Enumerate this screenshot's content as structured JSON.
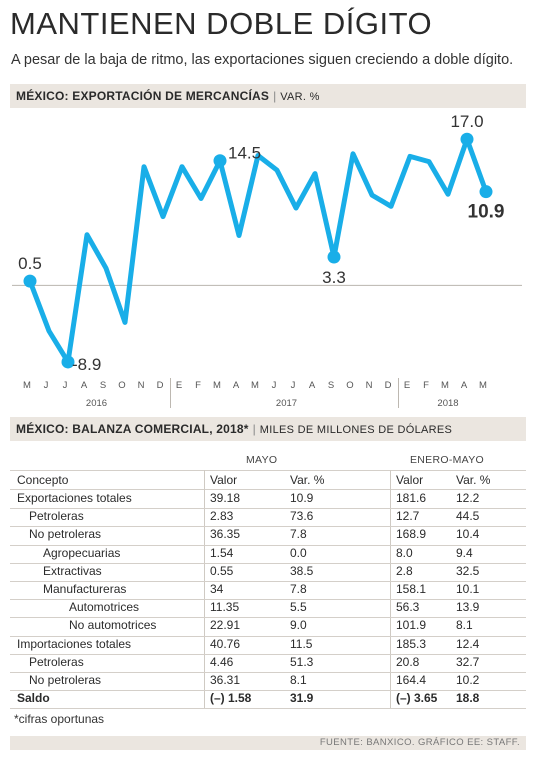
{
  "header": {
    "title": "MANTIENEN DOBLE DÍGITO",
    "subtitle": "A pesar de la baja de ritmo, las exportaciones siguen creciendo a doble dígito."
  },
  "section1": {
    "title": "MÉXICO: EXPORTACIÓN DE MERCANCÍAS",
    "separator": "|",
    "unit": "VAR. %"
  },
  "chart_data": {
    "type": "line",
    "categories": [
      "M",
      "J",
      "J",
      "A",
      "S",
      "O",
      "N",
      "D",
      "E",
      "F",
      "M",
      "A",
      "M",
      "J",
      "J",
      "A",
      "S",
      "O",
      "N",
      "D",
      "E",
      "F",
      "M",
      "A",
      "M"
    ],
    "year_labels": [
      "2016",
      "2017",
      "2018"
    ],
    "series": [
      {
        "values": [
          0.5,
          -5.3,
          -8.9,
          5.9,
          2.0,
          -4.3,
          13.8,
          8.0,
          13.8,
          10.1,
          14.5,
          5.8,
          15.1,
          13.4,
          9.0,
          13.0,
          3.3,
          15.3,
          10.5,
          9.2,
          15.0,
          14.4,
          10.6,
          17.0,
          10.9
        ]
      }
    ],
    "point_labels": [
      {
        "index": 0,
        "text": "0.5"
      },
      {
        "index": 2,
        "text": "-8.9"
      },
      {
        "index": 10,
        "text": "14.5"
      },
      {
        "index": 16,
        "text": "3.3"
      },
      {
        "index": 23,
        "text": "17.0"
      },
      {
        "index": 24,
        "text": "10.9"
      }
    ],
    "baseline": 0,
    "ylim": [
      -11,
      19
    ],
    "color": "#19aee8",
    "grid": false
  },
  "section2": {
    "title": "MÉXICO: BALANZA COMERCIAL, 2018*",
    "separator": "|",
    "unit": "MILES DE MILLONES DE DÓLARES"
  },
  "table": {
    "group_may": "MAYO",
    "group_jan_may": "ENERO-MAYO",
    "headers": [
      "Concepto",
      "Valor",
      "Var. %",
      "Valor",
      "Var. %"
    ],
    "rows": [
      {
        "indent": 0,
        "bold": false,
        "cells": [
          "Exportaciones totales",
          "39.18",
          "10.9",
          "181.6",
          "12.2"
        ]
      },
      {
        "indent": 1,
        "bold": false,
        "cells": [
          "Petroleras",
          "2.83",
          "73.6",
          "12.7",
          "44.5"
        ]
      },
      {
        "indent": 1,
        "bold": false,
        "cells": [
          "No petroleras",
          "36.35",
          "7.8",
          "168.9",
          "10.4"
        ]
      },
      {
        "indent": 2,
        "bold": false,
        "cells": [
          "Agropecuarias",
          "1.54",
          "0.0",
          "8.0",
          "9.4"
        ]
      },
      {
        "indent": 2,
        "bold": false,
        "cells": [
          "Extractivas",
          "0.55",
          "38.5",
          "2.8",
          "32.5"
        ]
      },
      {
        "indent": 2,
        "bold": false,
        "cells": [
          "Manufactureras",
          "34",
          "7.8",
          "158.1",
          "10.1"
        ]
      },
      {
        "indent": 3,
        "bold": false,
        "cells": [
          "Automotrices",
          "11.35",
          "5.5",
          "56.3",
          "13.9"
        ]
      },
      {
        "indent": 3,
        "bold": false,
        "cells": [
          "No automotrices",
          "22.91",
          "9.0",
          "101.9",
          "8.1"
        ]
      },
      {
        "indent": 0,
        "bold": false,
        "cells": [
          "Importaciones totales",
          "40.76",
          "11.5",
          "185.3",
          "12.4"
        ]
      },
      {
        "indent": 1,
        "bold": false,
        "cells": [
          "Petroleras",
          "4.46",
          "51.3",
          "20.8",
          "32.7"
        ]
      },
      {
        "indent": 1,
        "bold": false,
        "cells": [
          "No petroleras",
          "36.31",
          "8.1",
          "164.4",
          "10.2"
        ]
      },
      {
        "indent": 0,
        "bold": true,
        "cells": [
          "Saldo",
          "(–) 1.58",
          "31.9",
          "(–) 3.65",
          "18.8"
        ]
      }
    ]
  },
  "footnote": "*cifras oportunas",
  "source": "FUENTE: BANXICO. GRÁFICO EE: STAFF."
}
